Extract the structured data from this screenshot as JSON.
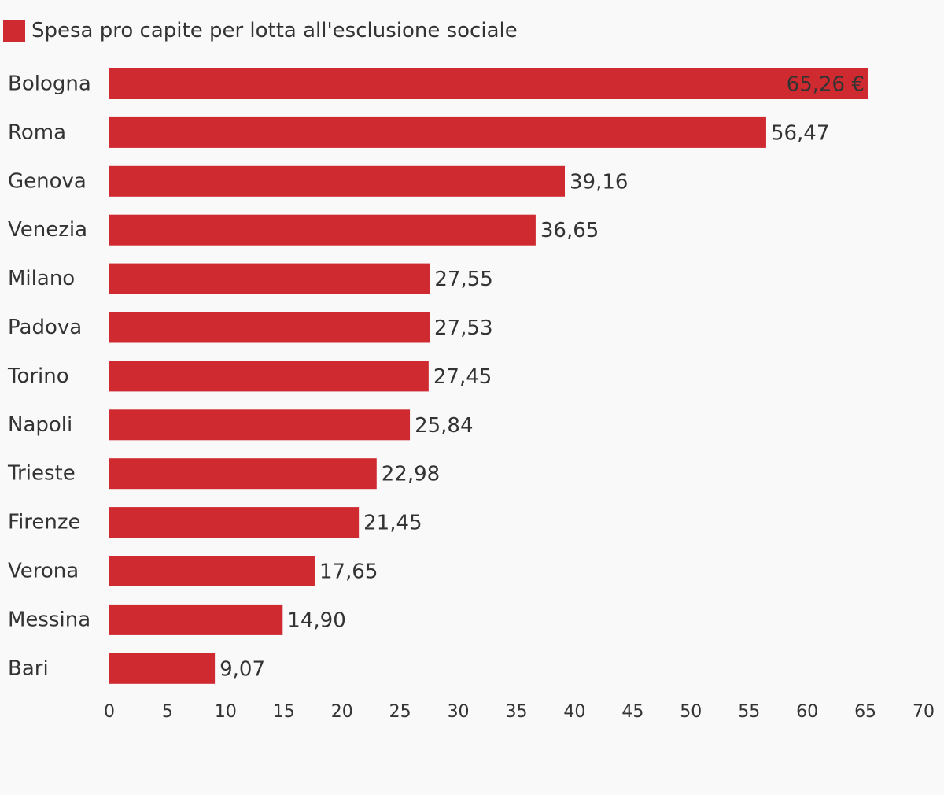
{
  "chart_data": {
    "type": "bar",
    "orientation": "horizontal",
    "categories": [
      "Bologna",
      "Roma",
      "Genova",
      "Venezia",
      "Milano",
      "Padova",
      "Torino",
      "Napoli",
      "Trieste",
      "Firenze",
      "Verona",
      "Messina",
      "Bari"
    ],
    "series": [
      {
        "name": "Spesa pro capite per lotta all'esclusione sociale",
        "values": [
          65.26,
          56.47,
          39.16,
          36.65,
          27.55,
          27.53,
          27.45,
          25.84,
          22.98,
          21.45,
          17.65,
          14.9,
          9.07
        ],
        "data_labels": [
          "65,26 €",
          "56,47",
          "39,16",
          "36,65",
          "27,55",
          "27,53",
          "27,45",
          "25,84",
          "22,98",
          "21,45",
          "17,65",
          "14,90",
          "9,07"
        ]
      }
    ],
    "xlim": [
      0,
      70
    ],
    "x_ticks": [
      "0",
      "5",
      "10",
      "15",
      "20",
      "25",
      "30",
      "35",
      "40",
      "45",
      "50",
      "55",
      "60",
      "65",
      "70"
    ],
    "grid": false,
    "legend_position": "top-left",
    "colors": {
      "bar": "#cf2a30",
      "text": "#333333",
      "background": "#f9f9f9"
    }
  }
}
